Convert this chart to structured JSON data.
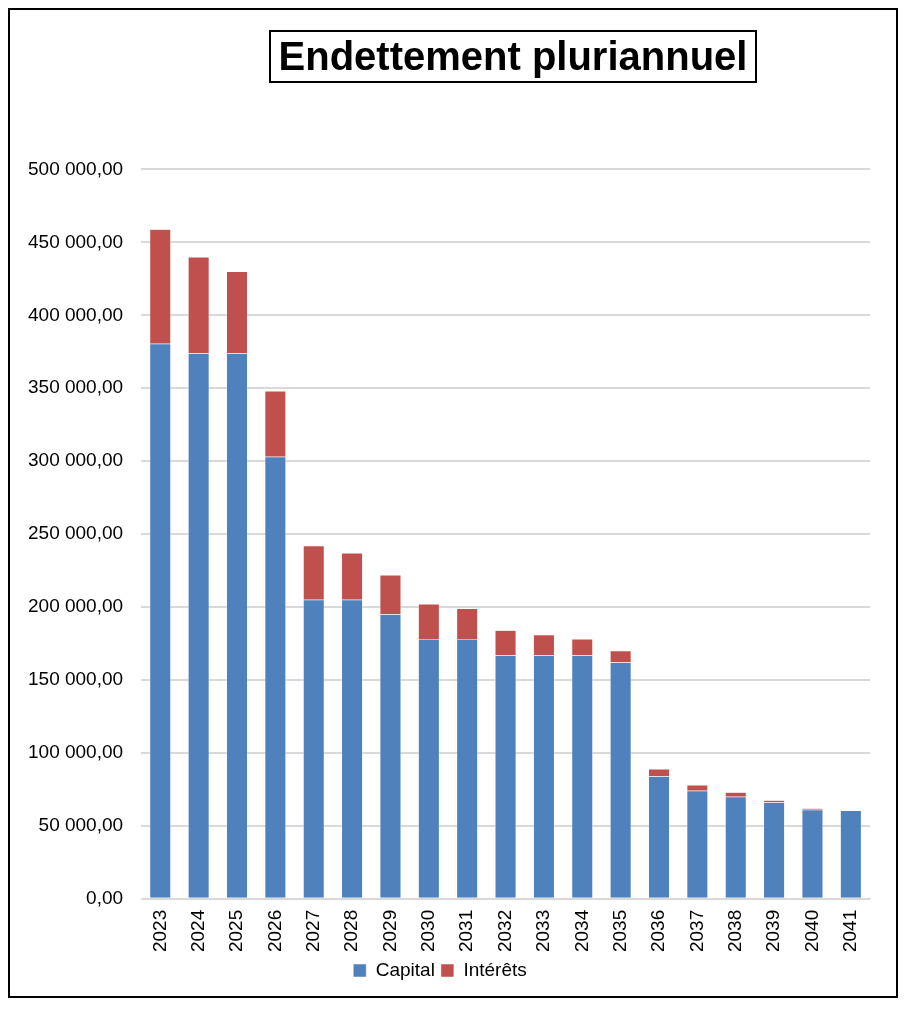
{
  "chart_data": {
    "type": "bar",
    "title": "Endettement pluriannuel",
    "stacked": true,
    "categories": [
      "2023",
      "2024",
      "2025",
      "2026",
      "2027",
      "2028",
      "2029",
      "2030",
      "2031",
      "2032",
      "2033",
      "2034",
      "2035",
      "2036",
      "2037",
      "2038",
      "2039",
      "2040",
      "2041"
    ],
    "series": [
      {
        "name": "Capital",
        "color": "#4f81bd",
        "values": [
          380500,
          374000,
          374000,
          303000,
          205000,
          205000,
          195000,
          178000,
          178000,
          167000,
          167000,
          167000,
          162000,
          84000,
          74000,
          70000,
          66000,
          61000,
          60500
        ]
      },
      {
        "name": "Intérêts",
        "color": "#c0504d",
        "values": [
          78500,
          66000,
          56000,
          45000,
          37000,
          32000,
          27000,
          24000,
          21000,
          17000,
          14000,
          11000,
          8000,
          5000,
          4000,
          3000,
          1500,
          1000,
          null
        ]
      }
    ],
    "ylim": [
      0,
      500000
    ],
    "yticks": [
      {
        "value": 0,
        "label": "0,00"
      },
      {
        "value": 50000,
        "label": "50 000,00"
      },
      {
        "value": 100000,
        "label": "100 000,00"
      },
      {
        "value": 150000,
        "label": "150 000,00"
      },
      {
        "value": 200000,
        "label": "200 000,00"
      },
      {
        "value": 250000,
        "label": "250 000,00"
      },
      {
        "value": 300000,
        "label": "300 000,00"
      },
      {
        "value": 350000,
        "label": "350 000,00"
      },
      {
        "value": 400000,
        "label": "400 000,00"
      },
      {
        "value": 450000,
        "label": "450 000,00"
      },
      {
        "value": 500000,
        "label": "500 000,00"
      }
    ],
    "grid": "y",
    "legend": "bottom"
  }
}
